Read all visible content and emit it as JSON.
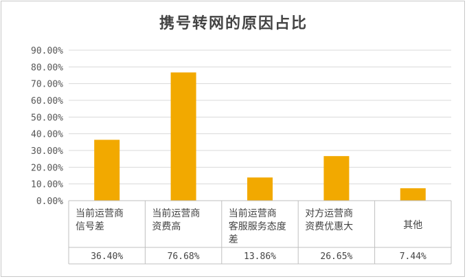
{
  "chart_data": {
    "type": "bar",
    "title": "携号转网的原因占比",
    "categories": [
      [
        "当前运营商",
        "信号差"
      ],
      [
        "当前运营商",
        "资费高"
      ],
      [
        "当前运营商",
        "客服服务态度",
        "差"
      ],
      [
        "对方运营商",
        "资费优惠大"
      ],
      [
        "其他"
      ]
    ],
    "values": [
      36.4,
      76.68,
      13.86,
      26.65,
      7.44
    ],
    "value_labels": [
      "36.40%",
      "76.68%",
      "13.86%",
      "26.65%",
      "7.44%"
    ],
    "yticks": [
      "0.00%",
      "10.00%",
      "20.00%",
      "30.00%",
      "40.00%",
      "50.00%",
      "60.00%",
      "70.00%",
      "80.00%",
      "90.00%"
    ],
    "ylim": [
      0,
      90
    ],
    "bar_color": "#f2a900",
    "grid": true,
    "data_table": true
  }
}
